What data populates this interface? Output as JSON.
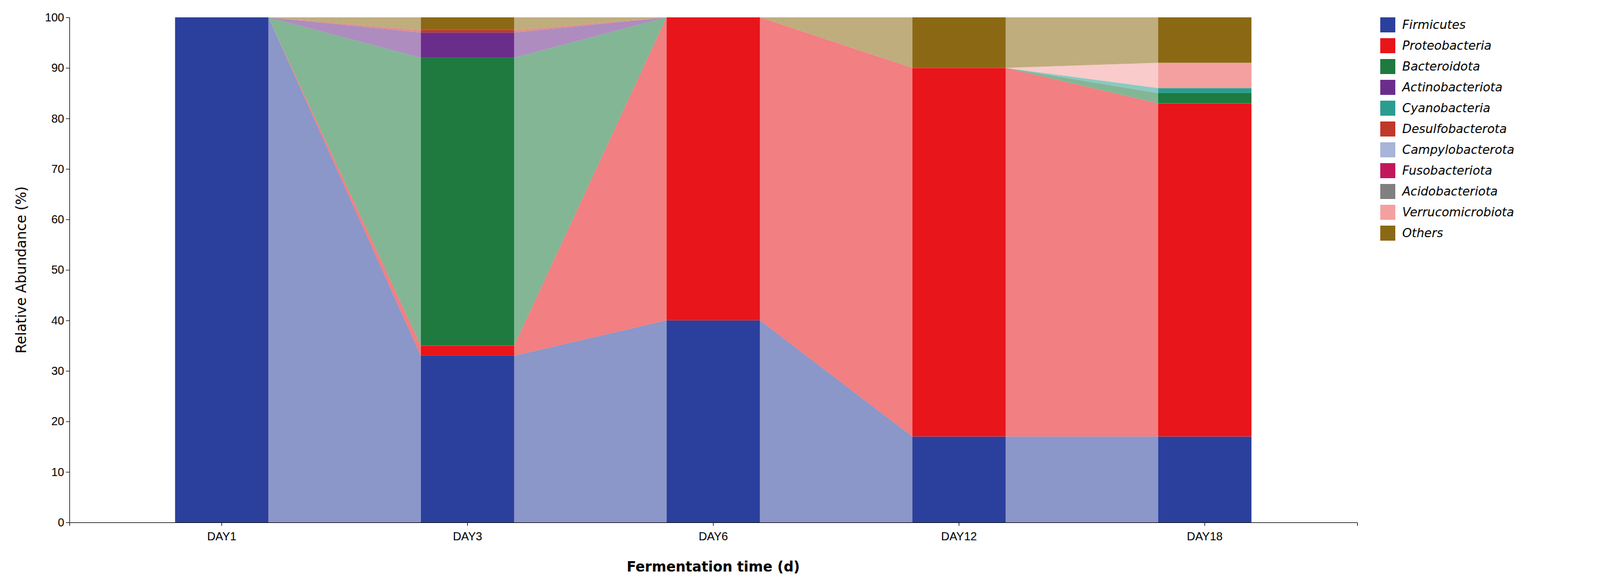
{
  "chart_data": {
    "type": "bar",
    "stacked": true,
    "xlabel": "Fermentation time (d)",
    "ylabel": "Relative Abundance (%)",
    "categories": [
      "DAY1",
      "DAY3",
      "DAY6",
      "DAY12",
      "DAY18"
    ],
    "series": [
      {
        "name": "Firmicutes",
        "color": "#2b409c",
        "values": [
          100.0,
          33.0,
          40.0,
          17.0,
          17.0
        ]
      },
      {
        "name": "Proteobacteria",
        "color": "#e8151a",
        "values": [
          0.0,
          2.0,
          60.0,
          73.0,
          66.0
        ]
      },
      {
        "name": "Bacteroidota",
        "color": "#1e7a3e",
        "values": [
          0.0,
          57.0,
          0.0,
          0.0,
          2.0
        ]
      },
      {
        "name": "Actinobacteriota",
        "color": "#6b2d8b",
        "values": [
          0.0,
          5.0,
          0.0,
          0.0,
          0.0
        ]
      },
      {
        "name": "Cyanobacteria",
        "color": "#2a9d8f",
        "values": [
          0.0,
          0.0,
          0.0,
          0.0,
          1.0
        ]
      },
      {
        "name": "Desulfobacterota",
        "color": "#c0392b",
        "values": [
          0.0,
          0.5,
          0.0,
          0.0,
          0.0
        ]
      },
      {
        "name": "Campylobacterota",
        "color": "#a8b4d8",
        "values": [
          0.0,
          0.0,
          0.0,
          0.0,
          0.0
        ]
      },
      {
        "name": "Fusobacteriota",
        "color": "#c2185b",
        "values": [
          0.0,
          0.0,
          0.0,
          0.0,
          0.0
        ]
      },
      {
        "name": "Acidobacteriota",
        "color": "#808080",
        "values": [
          0.0,
          0.0,
          0.0,
          0.0,
          0.0
        ]
      },
      {
        "name": "Verrucomicrobiota",
        "color": "#f4a0a0",
        "values": [
          0.0,
          0.0,
          0.0,
          0.0,
          5.0
        ]
      },
      {
        "name": "Others",
        "color": "#8B6914",
        "values": [
          0.0,
          2.5,
          0.0,
          10.0,
          9.0
        ]
      }
    ],
    "ylim": [
      0,
      100
    ],
    "yticks": [
      0,
      10,
      20,
      30,
      40,
      50,
      60,
      70,
      80,
      90,
      100
    ],
    "grid": false,
    "legend": "right"
  }
}
